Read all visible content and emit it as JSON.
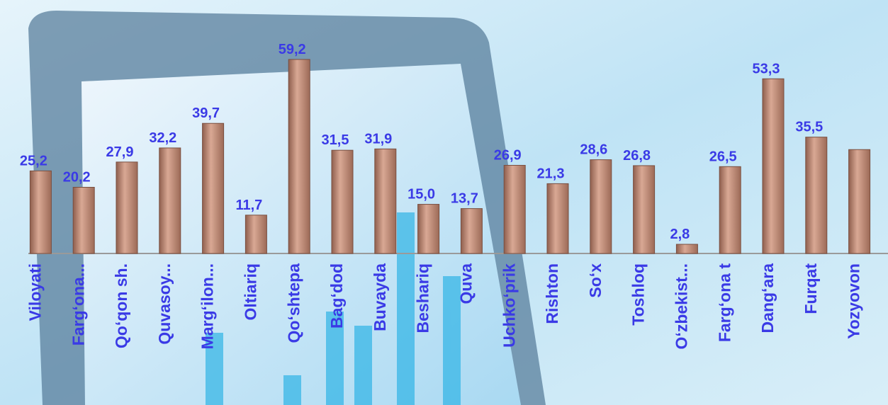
{
  "chart_data": {
    "type": "bar",
    "categories": [
      "Viloyati",
      "Farg‘ona...",
      "Qo‘qon sh.",
      "Quvasoy...",
      "Marg‘ilon...",
      "Oltiariq",
      "Qo‘shtepa",
      "Bag‘dod",
      "Buvayda",
      "Beshariq",
      "Quva",
      "Uchko‘prik",
      "Rishton",
      "So‘x",
      "Toshloq",
      "O‘zbekist...",
      "Farg‘ona t",
      "Dang‘ara",
      "Furqat",
      "Yozyovon"
    ],
    "values": [
      25.2,
      20.2,
      27.9,
      32.2,
      39.7,
      11.7,
      59.2,
      31.5,
      31.9,
      15.0,
      13.7,
      26.9,
      21.3,
      28.6,
      26.8,
      2.8,
      26.5,
      53.3,
      35.5,
      31.7
    ],
    "value_labels": [
      "25,2",
      "20,2",
      "27,9",
      "32,2",
      "39,7",
      "11,7",
      "59,2",
      "31,5",
      "31,9",
      "15,0",
      "13,7",
      "26,9",
      "21,3",
      "28,6",
      "26,8",
      "2,8",
      "26,5",
      "53,3",
      "35,5",
      null
    ],
    "color": "#c99582",
    "ylim": [
      0,
      62
    ]
  }
}
